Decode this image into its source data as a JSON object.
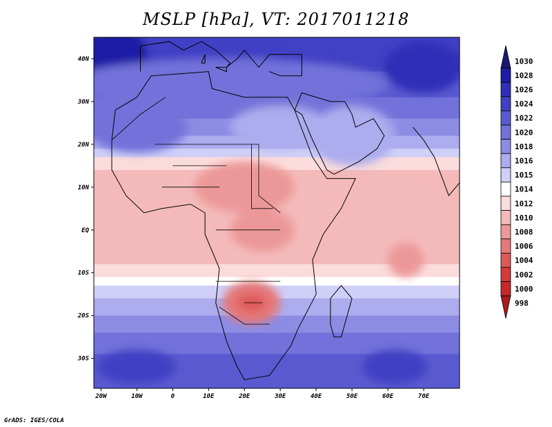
{
  "title": "MSLP [hPa], VT: 2017011218",
  "credit": "GrADS: IGES/COLA",
  "map": {
    "variable": "Mean sea level pressure",
    "units": "hPa",
    "valid_time": "2017011218",
    "lon_range": [
      -22,
      80
    ],
    "lat_range": [
      -37,
      45
    ],
    "x_ticks": [
      {
        "lon": -20,
        "label": "20W"
      },
      {
        "lon": -10,
        "label": "10W"
      },
      {
        "lon": 0,
        "label": "0"
      },
      {
        "lon": 10,
        "label": "10E"
      },
      {
        "lon": 20,
        "label": "20E"
      },
      {
        "lon": 30,
        "label": "30E"
      },
      {
        "lon": 40,
        "label": "40E"
      },
      {
        "lon": 50,
        "label": "50E"
      },
      {
        "lon": 60,
        "label": "60E"
      },
      {
        "lon": 70,
        "label": "70E"
      }
    ],
    "y_ticks": [
      {
        "lat": 40,
        "label": "40N"
      },
      {
        "lat": 30,
        "label": "30N"
      },
      {
        "lat": 20,
        "label": "20N"
      },
      {
        "lat": 10,
        "label": "10N"
      },
      {
        "lat": 0,
        "label": "EQ"
      },
      {
        "lat": -10,
        "label": "10S"
      },
      {
        "lat": -20,
        "label": "20S"
      },
      {
        "lat": -30,
        "label": "30S"
      }
    ]
  },
  "colorbar": {
    "levels": [
      {
        "label": "1030",
        "color": "#191970"
      },
      {
        "label": "1028",
        "color": "#1d1da6"
      },
      {
        "label": "1026",
        "color": "#2f2fb8"
      },
      {
        "label": "1024",
        "color": "#4141c4"
      },
      {
        "label": "1022",
        "color": "#5a5ad0"
      },
      {
        "label": "1020",
        "color": "#7272da"
      },
      {
        "label": "1018",
        "color": "#8c8ce4"
      },
      {
        "label": "1016",
        "color": "#acacee"
      },
      {
        "label": "1015",
        "color": "#cfcff7"
      },
      {
        "label": "1014",
        "color": "#ffffff"
      },
      {
        "label": "1012",
        "color": "#fbdcdc"
      },
      {
        "label": "1010",
        "color": "#f4baba"
      },
      {
        "label": "1008",
        "color": "#ec9898"
      },
      {
        "label": "1006",
        "color": "#e57878"
      },
      {
        "label": "1004",
        "color": "#de5858"
      },
      {
        "label": "1002",
        "color": "#d63a3a"
      },
      {
        "label": "1000",
        "color": "#c82828"
      },
      {
        "label": "998",
        "color": "#a81c1c"
      }
    ]
  },
  "fields": [
    {
      "name": "n-high-europe",
      "lon": 2,
      "lat": 42,
      "rx": 28,
      "ry": 6,
      "color": "#4141c4"
    },
    {
      "name": "n-high-west",
      "lon": -16,
      "lat": 40,
      "rx": 9,
      "ry": 8,
      "color": "#1d1da6"
    },
    {
      "name": "n-high-asia",
      "lon": 70,
      "lat": 38,
      "rx": 11,
      "ry": 6,
      "color": "#2f2fb8"
    },
    {
      "name": "n-band-1",
      "lon": 15,
      "lat": 34,
      "rx": 45,
      "ry": 6,
      "color": "#7272da"
    },
    {
      "name": "n-sahara-west",
      "lon": -10,
      "lat": 24,
      "rx": 14,
      "ry": 6,
      "color": "#7272da"
    },
    {
      "name": "n-sahara-east",
      "lon": 30,
      "lat": 24,
      "rx": 14,
      "ry": 5,
      "color": "#acacee"
    },
    {
      "name": "arabia",
      "lon": 50,
      "lat": 22,
      "rx": 12,
      "ry": 7,
      "color": "#acacee"
    },
    {
      "name": "africa-low-n",
      "lon": 20,
      "lat": 10,
      "rx": 14,
      "ry": 6,
      "color": "#ec9898"
    },
    {
      "name": "africa-low-c",
      "lon": 25,
      "lat": 0,
      "rx": 9,
      "ry": 5,
      "color": "#ec9898"
    },
    {
      "name": "africa-low-s",
      "lon": 22,
      "lat": -17,
      "rx": 8,
      "ry": 5,
      "color": "#e57878"
    },
    {
      "name": "africa-low-core",
      "lon": 22,
      "lat": -17,
      "rx": 4,
      "ry": 2,
      "color": "#de5858"
    },
    {
      "name": "indian-low",
      "lon": 65,
      "lat": -7,
      "rx": 5,
      "ry": 4,
      "color": "#ec9898"
    },
    {
      "name": "s-high-atlantic",
      "lon": -10,
      "lat": -32,
      "rx": 11,
      "ry": 4,
      "color": "#4141c4"
    },
    {
      "name": "s-high-indian",
      "lon": 62,
      "lat": -32,
      "rx": 9,
      "ry": 4,
      "color": "#4141c4"
    }
  ]
}
